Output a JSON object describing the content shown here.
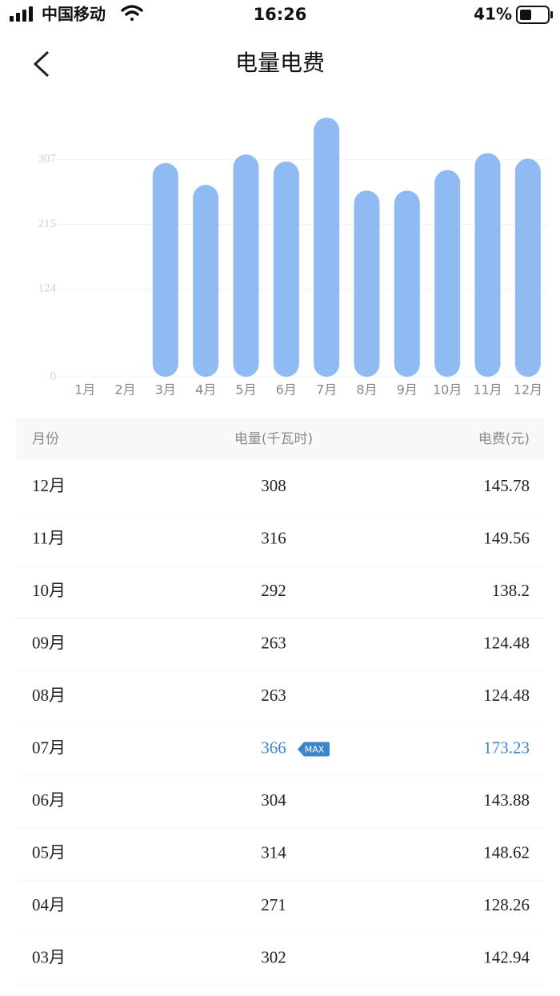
{
  "status_bar": {
    "carrier": "中国移动",
    "time": "16:26",
    "battery": "41%"
  },
  "header": {
    "title": "电量电费"
  },
  "chart_data": {
    "type": "bar",
    "categories": [
      "1月",
      "2月",
      "3月",
      "4月",
      "5月",
      "6月",
      "7月",
      "8月",
      "9月",
      "10月",
      "11月",
      "12月"
    ],
    "values": [
      null,
      null,
      302,
      271,
      314,
      304,
      366,
      263,
      263,
      292,
      316,
      308
    ],
    "color": "#8fbbf2",
    "ylim": [
      0,
      400
    ],
    "yticks": [
      0,
      124,
      215,
      307
    ],
    "grid": true
  },
  "table": {
    "header": [
      "月份",
      "电量(千瓦时)",
      "电费(元)"
    ],
    "rows": [
      {
        "cells": [
          "12月",
          "308",
          "145.78"
        ]
      },
      {
        "cells": [
          "11月",
          "316",
          "149.56"
        ]
      },
      {
        "cells": [
          "10月",
          "292",
          "138.2"
        ]
      },
      {
        "cells": [
          "09月",
          "263",
          "124.48"
        ]
      },
      {
        "cells": [
          "08月",
          "263",
          "124.48"
        ]
      },
      {
        "cells": [
          "07月",
          "366",
          "173.23"
        ],
        "badge": "MAX"
      },
      {
        "cells": [
          "06月",
          "304",
          "143.88"
        ]
      },
      {
        "cells": [
          "05月",
          "314",
          "148.62"
        ]
      },
      {
        "cells": [
          "04月",
          "271",
          "128.26"
        ]
      },
      {
        "cells": [
          "03月",
          "302",
          "142.94"
        ]
      }
    ]
  }
}
